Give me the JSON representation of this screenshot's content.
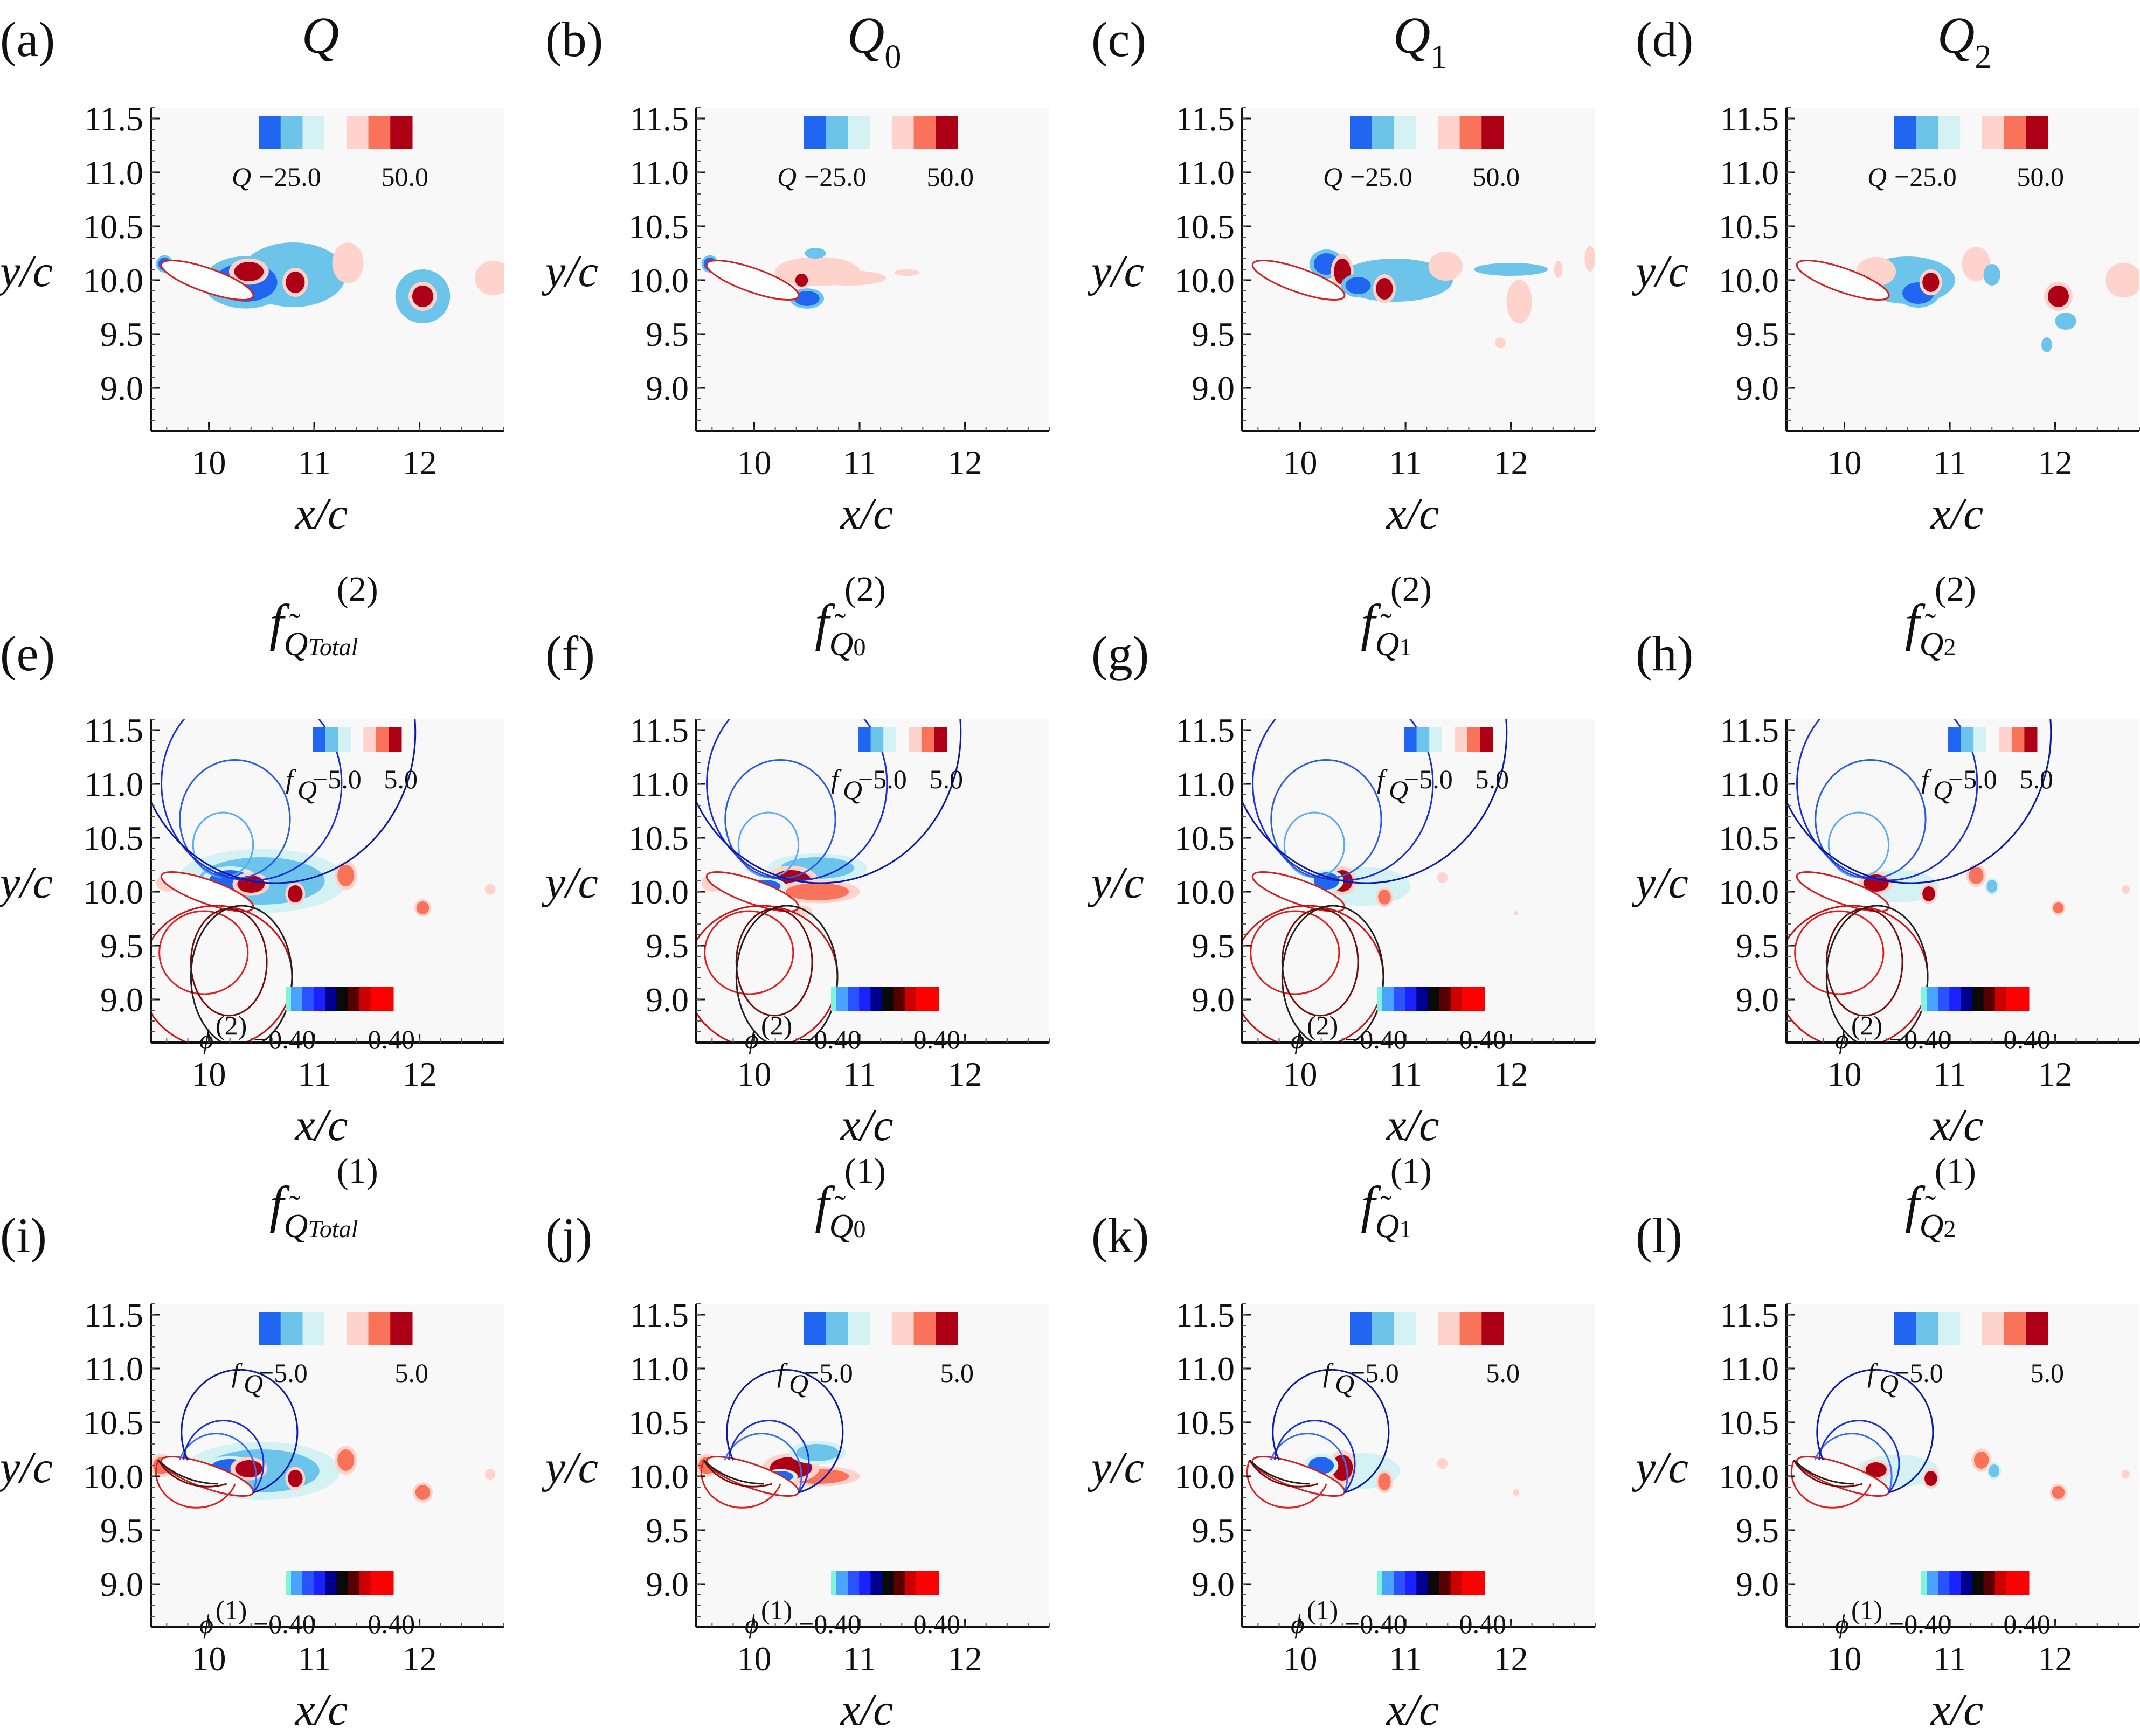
{
  "figure": {
    "x_label": "x/c",
    "y_label": "y/c",
    "x_ticks": [
      "10",
      "11",
      "12"
    ],
    "y_ticks": [
      "9.0",
      "9.5",
      "10.0",
      "10.5",
      "11.0",
      "11.5"
    ],
    "background_color": "#f8f8f8"
  },
  "colorbars": {
    "Q": {
      "label": "Q",
      "min_label": "−25.0",
      "max_label": "50.0",
      "colors": [
        "#2166f0",
        "#6cc4ea",
        "#d4f1f4",
        "#f9f9f9",
        "#fdd3cb",
        "#f87359",
        "#ad0017"
      ]
    },
    "fQ": {
      "label": "f",
      "label_sub": "Q",
      "min_label": "−5.0",
      "max_label": "5.0",
      "colors": [
        "#2166f0",
        "#6cc4ea",
        "#d4f1f4",
        "#f9f9f9",
        "#fdd3cb",
        "#f87359",
        "#ad0017"
      ]
    },
    "phi2": {
      "label": "ϕ",
      "label_sup": "(2)",
      "min_label": "−0.40",
      "max_label": "0.40",
      "colors": [
        "#7ff5da",
        "#4aa3ff",
        "#2b52ff",
        "#1a23ff",
        "#00008e",
        "#0a0a0a",
        "#560000",
        "#cc0000",
        "#ff0000",
        "#ff0000"
      ]
    },
    "phi1": {
      "label": "ϕ",
      "label_sup": "(1)",
      "min_label": "−0.40",
      "max_label": "0.40",
      "colors": [
        "#7ff5da",
        "#4aa3ff",
        "#2b52ff",
        "#1a23ff",
        "#00008e",
        "#0a0a0a",
        "#560000",
        "#cc0000",
        "#ff0000",
        "#ff0000"
      ]
    }
  },
  "chart_data": [
    {
      "id": "a",
      "label": "(a)",
      "title_main": "Q",
      "title_tilde": false,
      "title_sub": "",
      "title_sup": "",
      "type": "heatmap",
      "colorbar": "Q",
      "phi_colorbar": null,
      "field_lines": null,
      "xlim": [
        9.45,
        12.8
      ],
      "ylim": [
        8.6,
        11.6
      ],
      "xlabel": "x/c",
      "ylabel": "y/c",
      "blobs": [
        {
          "x": 10.38,
          "y": 10.08,
          "rx": 0.14,
          "ry": 0.09,
          "value": 50
        },
        {
          "x": 10.82,
          "y": 9.98,
          "rx": 0.09,
          "ry": 0.1,
          "value": 50
        },
        {
          "x": 11.32,
          "y": 10.16,
          "rx": 0.11,
          "ry": 0.14,
          "value": 30
        },
        {
          "x": 12.03,
          "y": 9.85,
          "rx": 0.1,
          "ry": 0.1,
          "value": 50
        },
        {
          "x": 12.7,
          "y": 10.02,
          "rx": 0.13,
          "ry": 0.12,
          "value": 30
        },
        {
          "x": 10.35,
          "y": 9.98,
          "rx": 0.3,
          "ry": 0.18,
          "value": -25
        },
        {
          "x": 9.58,
          "y": 10.15,
          "rx": 0.06,
          "ry": 0.06,
          "value": -25
        },
        {
          "x": 10.8,
          "y": 10.05,
          "rx": 0.5,
          "ry": 0.3,
          "value": -8
        },
        {
          "x": 12.03,
          "y": 9.85,
          "rx": 0.26,
          "ry": 0.25,
          "value": -8
        }
      ]
    },
    {
      "id": "b",
      "label": "(b)",
      "title_main": "Q",
      "title_tilde": true,
      "title_sub": "0",
      "title_sup": "",
      "type": "heatmap",
      "colorbar": "Q",
      "phi_colorbar": null,
      "field_lines": null,
      "xlim": [
        9.45,
        12.8
      ],
      "ylim": [
        8.6,
        11.6
      ],
      "xlabel": "x/c",
      "ylabel": "y/c",
      "blobs": [
        {
          "x": 10.6,
          "y": 10.08,
          "rx": 0.3,
          "ry": 0.1,
          "value": 30
        },
        {
          "x": 10.45,
          "y": 10.0,
          "rx": 0.06,
          "ry": 0.06,
          "value": 50
        },
        {
          "x": 10.9,
          "y": 10.02,
          "rx": 0.35,
          "ry": 0.07,
          "value": 10
        },
        {
          "x": 11.45,
          "y": 10.07,
          "rx": 0.12,
          "ry": 0.03,
          "value": 10
        },
        {
          "x": 10.5,
          "y": 9.83,
          "rx": 0.12,
          "ry": 0.07,
          "value": -25
        },
        {
          "x": 10.58,
          "y": 10.25,
          "rx": 0.1,
          "ry": 0.05,
          "value": -15
        },
        {
          "x": 9.58,
          "y": 10.15,
          "rx": 0.06,
          "ry": 0.06,
          "value": -25
        }
      ]
    },
    {
      "id": "c",
      "label": "(c)",
      "title_main": "Q",
      "title_tilde": true,
      "title_sub": "1",
      "title_sup": "",
      "type": "heatmap",
      "colorbar": "Q",
      "phi_colorbar": null,
      "field_lines": null,
      "xlim": [
        9.45,
        12.8
      ],
      "ylim": [
        8.6,
        11.6
      ],
      "xlabel": "x/c",
      "ylabel": "y/c",
      "blobs": [
        {
          "x": 10.25,
          "y": 10.15,
          "rx": 0.12,
          "ry": 0.1,
          "value": -25
        },
        {
          "x": 10.4,
          "y": 10.08,
          "rx": 0.08,
          "ry": 0.12,
          "value": 50
        },
        {
          "x": 10.8,
          "y": 9.92,
          "rx": 0.08,
          "ry": 0.1,
          "value": 50
        },
        {
          "x": 10.55,
          "y": 9.95,
          "rx": 0.12,
          "ry": 0.08,
          "value": -25
        },
        {
          "x": 11.38,
          "y": 10.13,
          "rx": 0.12,
          "ry": 0.1,
          "value": 30
        },
        {
          "x": 12.08,
          "y": 9.8,
          "rx": 0.09,
          "ry": 0.15,
          "value": 30
        },
        {
          "x": 11.9,
          "y": 9.42,
          "rx": 0.05,
          "ry": 0.05,
          "value": 10
        },
        {
          "x": 12.45,
          "y": 10.1,
          "rx": 0.04,
          "ry": 0.08,
          "value": 10
        },
        {
          "x": 12.75,
          "y": 10.2,
          "rx": 0.05,
          "ry": 0.12,
          "value": 10
        },
        {
          "x": 10.9,
          "y": 10.0,
          "rx": 0.55,
          "ry": 0.2,
          "value": -8
        },
        {
          "x": 12.0,
          "y": 10.1,
          "rx": 0.35,
          "ry": 0.06,
          "value": -8
        }
      ]
    },
    {
      "id": "d",
      "label": "(d)",
      "title_main": "Q",
      "title_tilde": true,
      "title_sub": "2",
      "title_sup": "",
      "type": "heatmap",
      "colorbar": "Q",
      "phi_colorbar": null,
      "field_lines": null,
      "xlim": [
        9.45,
        12.8
      ],
      "ylim": [
        8.6,
        11.6
      ],
      "xlabel": "x/c",
      "ylabel": "y/c",
      "blobs": [
        {
          "x": 10.3,
          "y": 10.08,
          "rx": 0.14,
          "ry": 0.1,
          "value": 30
        },
        {
          "x": 10.82,
          "y": 9.98,
          "rx": 0.08,
          "ry": 0.09,
          "value": 50
        },
        {
          "x": 10.7,
          "y": 9.88,
          "rx": 0.15,
          "ry": 0.1,
          "value": -25
        },
        {
          "x": 11.25,
          "y": 10.15,
          "rx": 0.1,
          "ry": 0.12,
          "value": 30
        },
        {
          "x": 11.4,
          "y": 10.05,
          "rx": 0.08,
          "ry": 0.1,
          "value": -15
        },
        {
          "x": 12.03,
          "y": 9.85,
          "rx": 0.1,
          "ry": 0.1,
          "value": 50
        },
        {
          "x": 12.1,
          "y": 9.62,
          "rx": 0.1,
          "ry": 0.08,
          "value": -15
        },
        {
          "x": 12.65,
          "y": 10.0,
          "rx": 0.13,
          "ry": 0.12,
          "value": 30
        },
        {
          "x": 11.92,
          "y": 9.4,
          "rx": 0.05,
          "ry": 0.07,
          "value": -8
        },
        {
          "x": 10.6,
          "y": 10.0,
          "rx": 0.45,
          "ry": 0.22,
          "value": -8
        }
      ]
    },
    {
      "id": "e",
      "label": "(e)",
      "title_main": "f",
      "title_tilde": true,
      "title_sub": "Total",
      "title_sub_base": "Q",
      "title_sup": "(2)",
      "type": "heatmap",
      "colorbar": "fQ",
      "phi_colorbar": "phi2",
      "field_lines": "order2",
      "xlim": [
        9.45,
        12.8
      ],
      "ylim": [
        8.6,
        11.6
      ],
      "xlabel": "x/c",
      "ylabel": "y/c",
      "blobs": [
        {
          "x": 10.4,
          "y": 10.07,
          "rx": 0.13,
          "ry": 0.08,
          "value": 5
        },
        {
          "x": 10.82,
          "y": 9.98,
          "rx": 0.07,
          "ry": 0.08,
          "value": 5
        },
        {
          "x": 11.3,
          "y": 10.15,
          "rx": 0.08,
          "ry": 0.1,
          "value": 3
        },
        {
          "x": 12.03,
          "y": 9.85,
          "rx": 0.06,
          "ry": 0.06,
          "value": 3
        },
        {
          "x": 12.67,
          "y": 10.02,
          "rx": 0.05,
          "ry": 0.05,
          "value": 1
        },
        {
          "x": 10.2,
          "y": 10.1,
          "rx": 0.2,
          "ry": 0.1,
          "value": -5
        },
        {
          "x": 10.5,
          "y": 10.1,
          "rx": 0.6,
          "ry": 0.22,
          "value": -3
        },
        {
          "x": 9.6,
          "y": 10.08,
          "rx": 0.1,
          "ry": 0.08,
          "value": 2
        }
      ]
    },
    {
      "id": "f",
      "label": "(f)",
      "title_main": "f",
      "title_tilde": true,
      "title_sub": "0",
      "title_sub_base": "Q",
      "title_sup": "(2)",
      "type": "heatmap",
      "colorbar": "fQ",
      "phi_colorbar": "phi2",
      "field_lines": "order2",
      "xlim": [
        9.45,
        12.8
      ],
      "ylim": [
        8.6,
        11.6
      ],
      "xlabel": "x/c",
      "ylabel": "y/c",
      "blobs": [
        {
          "x": 10.35,
          "y": 10.08,
          "rx": 0.2,
          "ry": 0.12,
          "value": 5
        },
        {
          "x": 10.6,
          "y": 10.0,
          "rx": 0.3,
          "ry": 0.08,
          "value": 3
        },
        {
          "x": 10.1,
          "y": 10.05,
          "rx": 0.15,
          "ry": 0.06,
          "value": -5
        },
        {
          "x": 10.6,
          "y": 10.22,
          "rx": 0.35,
          "ry": 0.1,
          "value": -3
        },
        {
          "x": 10.45,
          "y": 9.82,
          "rx": 0.1,
          "ry": 0.05,
          "value": 2
        },
        {
          "x": 9.6,
          "y": 10.08,
          "rx": 0.1,
          "ry": 0.08,
          "value": 2
        }
      ]
    },
    {
      "id": "g",
      "label": "(g)",
      "title_main": "f",
      "title_tilde": true,
      "title_sub": "1",
      "title_sub_base": "Q",
      "title_sup": "(2)",
      "type": "heatmap",
      "colorbar": "fQ",
      "phi_colorbar": "phi2",
      "field_lines": "order2",
      "xlim": [
        9.45,
        12.8
      ],
      "ylim": [
        8.6,
        11.6
      ],
      "xlabel": "x/c",
      "ylabel": "y/c",
      "blobs": [
        {
          "x": 10.4,
          "y": 10.1,
          "rx": 0.1,
          "ry": 0.1,
          "value": 5
        },
        {
          "x": 10.8,
          "y": 9.95,
          "rx": 0.06,
          "ry": 0.07,
          "value": 3
        },
        {
          "x": 10.25,
          "y": 10.1,
          "rx": 0.12,
          "ry": 0.08,
          "value": -5
        },
        {
          "x": 11.35,
          "y": 10.13,
          "rx": 0.05,
          "ry": 0.05,
          "value": 2
        },
        {
          "x": 12.05,
          "y": 9.8,
          "rx": 0.02,
          "ry": 0.02,
          "value": 1
        },
        {
          "x": 10.6,
          "y": 10.05,
          "rx": 0.45,
          "ry": 0.18,
          "value": -2
        }
      ]
    },
    {
      "id": "h",
      "label": "(h)",
      "title_main": "f",
      "title_tilde": true,
      "title_sub": "2",
      "title_sub_base": "Q",
      "title_sup": "(2)",
      "type": "heatmap",
      "colorbar": "fQ",
      "phi_colorbar": "phi2",
      "field_lines": "order2",
      "xlim": [
        9.45,
        12.8
      ],
      "ylim": [
        8.6,
        11.6
      ],
      "xlabel": "x/c",
      "ylabel": "y/c",
      "blobs": [
        {
          "x": 10.3,
          "y": 10.08,
          "rx": 0.12,
          "ry": 0.08,
          "value": 5
        },
        {
          "x": 10.8,
          "y": 9.98,
          "rx": 0.06,
          "ry": 0.07,
          "value": 5
        },
        {
          "x": 11.25,
          "y": 10.15,
          "rx": 0.07,
          "ry": 0.08,
          "value": 3
        },
        {
          "x": 11.4,
          "y": 10.05,
          "rx": 0.05,
          "ry": 0.06,
          "value": -3
        },
        {
          "x": 12.03,
          "y": 9.85,
          "rx": 0.05,
          "ry": 0.05,
          "value": 3
        },
        {
          "x": 12.67,
          "y": 10.02,
          "rx": 0.04,
          "ry": 0.04,
          "value": 1
        },
        {
          "x": 10.5,
          "y": 10.05,
          "rx": 0.4,
          "ry": 0.15,
          "value": -2
        }
      ]
    },
    {
      "id": "i",
      "label": "(i)",
      "title_main": "f",
      "title_tilde": true,
      "title_sub": "Total",
      "title_sub_base": "Q",
      "title_sup": "(1)",
      "type": "heatmap",
      "colorbar": "fQ",
      "phi_colorbar": "phi1",
      "field_lines": "order1",
      "xlim": [
        9.45,
        12.8
      ],
      "ylim": [
        8.6,
        11.6
      ],
      "xlabel": "x/c",
      "ylabel": "y/c",
      "blobs": [
        {
          "x": 10.38,
          "y": 10.07,
          "rx": 0.13,
          "ry": 0.08,
          "value": 5
        },
        {
          "x": 10.82,
          "y": 9.98,
          "rx": 0.07,
          "ry": 0.08,
          "value": 5
        },
        {
          "x": 11.3,
          "y": 10.15,
          "rx": 0.08,
          "ry": 0.1,
          "value": 3
        },
        {
          "x": 12.03,
          "y": 9.85,
          "rx": 0.07,
          "ry": 0.07,
          "value": 3
        },
        {
          "x": 12.67,
          "y": 10.02,
          "rx": 0.05,
          "ry": 0.05,
          "value": 1
        },
        {
          "x": 10.2,
          "y": 10.08,
          "rx": 0.18,
          "ry": 0.08,
          "value": -5
        },
        {
          "x": 10.5,
          "y": 10.05,
          "rx": 0.55,
          "ry": 0.2,
          "value": -3
        },
        {
          "x": 9.55,
          "y": 10.1,
          "rx": 0.08,
          "ry": 0.08,
          "value": 3
        }
      ]
    },
    {
      "id": "j",
      "label": "(j)",
      "title_main": "f",
      "title_tilde": true,
      "title_sub": "0",
      "title_sub_base": "Q",
      "title_sup": "(1)",
      "type": "heatmap",
      "colorbar": "fQ",
      "phi_colorbar": "phi1",
      "field_lines": "order1",
      "xlim": [
        9.45,
        12.8
      ],
      "ylim": [
        8.6,
        11.6
      ],
      "xlabel": "x/c",
      "ylabel": "y/c",
      "blobs": [
        {
          "x": 10.35,
          "y": 10.08,
          "rx": 0.2,
          "ry": 0.1,
          "value": 5
        },
        {
          "x": 10.6,
          "y": 10.0,
          "rx": 0.3,
          "ry": 0.07,
          "value": 3
        },
        {
          "x": 10.25,
          "y": 10.0,
          "rx": 0.12,
          "ry": 0.05,
          "value": -5
        },
        {
          "x": 10.6,
          "y": 10.22,
          "rx": 0.2,
          "ry": 0.08,
          "value": -3
        },
        {
          "x": 9.55,
          "y": 10.1,
          "rx": 0.08,
          "ry": 0.08,
          "value": 3
        }
      ]
    },
    {
      "id": "k",
      "label": "(k)",
      "title_main": "f",
      "title_tilde": true,
      "title_sub": "1",
      "title_sub_base": "Q",
      "title_sup": "(1)",
      "type": "heatmap",
      "colorbar": "fQ",
      "phi_colorbar": "phi1",
      "field_lines": "order1",
      "xlim": [
        9.45,
        12.8
      ],
      "ylim": [
        8.6,
        11.6
      ],
      "xlabel": "x/c",
      "ylabel": "y/c",
      "blobs": [
        {
          "x": 10.4,
          "y": 10.08,
          "rx": 0.1,
          "ry": 0.12,
          "value": 5
        },
        {
          "x": 10.8,
          "y": 9.95,
          "rx": 0.06,
          "ry": 0.08,
          "value": 3
        },
        {
          "x": 10.2,
          "y": 10.1,
          "rx": 0.12,
          "ry": 0.08,
          "value": -5
        },
        {
          "x": 11.35,
          "y": 10.12,
          "rx": 0.05,
          "ry": 0.05,
          "value": 2
        },
        {
          "x": 12.05,
          "y": 9.85,
          "rx": 0.03,
          "ry": 0.03,
          "value": 1
        },
        {
          "x": 10.55,
          "y": 10.05,
          "rx": 0.4,
          "ry": 0.17,
          "value": -2
        }
      ]
    },
    {
      "id": "l",
      "label": "(l)",
      "title_main": "f",
      "title_tilde": true,
      "title_sub": "2",
      "title_sub_base": "Q",
      "title_sup": "(1)",
      "type": "heatmap",
      "colorbar": "fQ",
      "phi_colorbar": "phi1",
      "field_lines": "order1",
      "xlim": [
        9.45,
        12.8
      ],
      "ylim": [
        8.6,
        11.6
      ],
      "xlabel": "x/c",
      "ylabel": "y/c",
      "blobs": [
        {
          "x": 10.3,
          "y": 10.06,
          "rx": 0.1,
          "ry": 0.07,
          "value": 5
        },
        {
          "x": 10.82,
          "y": 9.98,
          "rx": 0.06,
          "ry": 0.07,
          "value": 5
        },
        {
          "x": 11.3,
          "y": 10.15,
          "rx": 0.07,
          "ry": 0.08,
          "value": 3
        },
        {
          "x": 11.42,
          "y": 10.05,
          "rx": 0.05,
          "ry": 0.06,
          "value": -3
        },
        {
          "x": 12.03,
          "y": 9.85,
          "rx": 0.06,
          "ry": 0.06,
          "value": 3
        },
        {
          "x": 12.67,
          "y": 10.02,
          "rx": 0.04,
          "ry": 0.04,
          "value": 1
        },
        {
          "x": 10.5,
          "y": 10.05,
          "rx": 0.4,
          "ry": 0.15,
          "value": -2
        }
      ]
    }
  ]
}
